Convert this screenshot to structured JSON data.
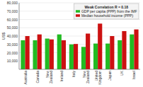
{
  "chart_data": {
    "type": "bar",
    "categories": [
      "Australia",
      "Canada",
      "New\nZealand",
      "Ireland",
      "Italy",
      "New\nZealand",
      "United\nKingdom",
      "Japan",
      "UK",
      "Israel"
    ],
    "series": [
      {
        "name": "GDP per capita (PPP) from the IMF",
        "color": "#22bb22",
        "values": [
          35000,
          35000,
          37000,
          42000,
          30000,
          27000,
          31000,
          31000,
          35000,
          42000
        ]
      },
      {
        "name": "Median household income (PPP)",
        "color": "#cc1111",
        "values": [
          40000,
          42000,
          36000,
          35000,
          30500,
          43000,
          55000,
          40000,
          46000,
          48000
        ]
      }
    ],
    "ylabel": "US$",
    "legend_title": "Weak Correlation R = 0.18",
    "ylim": [
      0,
      80000
    ],
    "yticks": [
      {
        "value": 10000,
        "label": "10,000"
      },
      {
        "value": 20000,
        "label": "20,000"
      },
      {
        "value": 30000,
        "label": "30,000"
      },
      {
        "value": 40000,
        "label": "40,000"
      },
      {
        "value": 50000,
        "label": "50,000"
      },
      {
        "value": 60000,
        "label": "60,000"
      },
      {
        "value": 70000,
        "label": "70,000"
      },
      {
        "value": 80000,
        "label": "80,000"
      }
    ],
    "grid": true,
    "legend": "upper right"
  }
}
